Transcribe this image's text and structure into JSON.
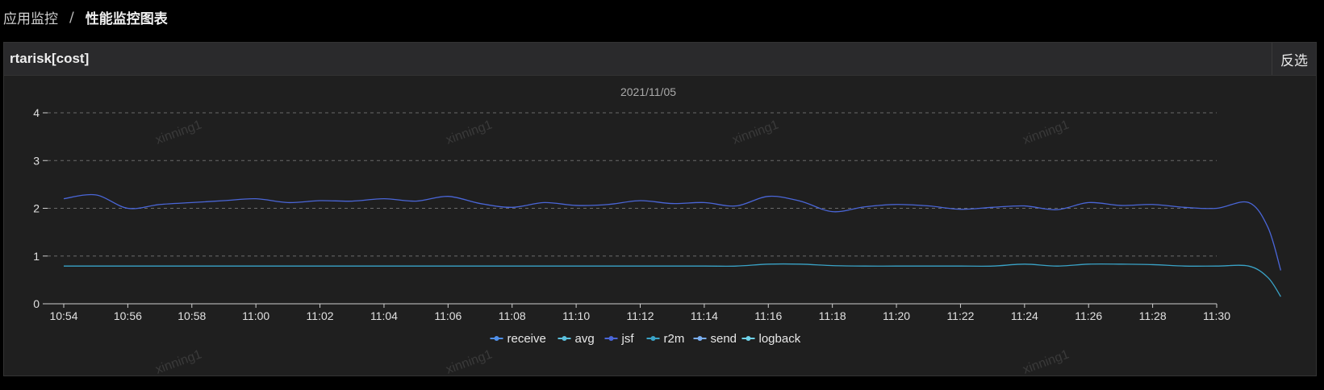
{
  "breadcrumb": {
    "parent": "应用监控",
    "separator": "/",
    "current": "性能监控图表"
  },
  "panel": {
    "title": "rtarisk[cost]",
    "invert_label": "反选"
  },
  "watermark_text": "xinning1",
  "chart_data": {
    "type": "line",
    "title": "2021/11/05",
    "xlabel": "",
    "ylabel": "",
    "ylim": [
      0,
      4
    ],
    "yticks": [
      0,
      1,
      2,
      3,
      4
    ],
    "x_labels": [
      "10:54",
      "10:56",
      "10:58",
      "11:00",
      "11:02",
      "11:04",
      "11:06",
      "11:08",
      "11:10",
      "11:12",
      "11:14",
      "11:16",
      "11:18",
      "11:20",
      "11:22",
      "11:24",
      "11:26",
      "11:28",
      "11:30"
    ],
    "legend_position": "bottom-center",
    "grid": true,
    "legend": [
      "receive",
      "avg",
      "jsf",
      "r2m",
      "send",
      "logback"
    ],
    "series_colors": [
      "#4f8fe8",
      "#5bc0de",
      "#4a66d8",
      "#3aa3c7",
      "#7aaef0",
      "#6fd3ea"
    ],
    "series": [
      {
        "name": "jsf",
        "color": "#4a66d8",
        "x": [
          0,
          0.5,
          1,
          1.5,
          2,
          2.5,
          3,
          3.5,
          4,
          4.5,
          5,
          5.5,
          6,
          6.5,
          7,
          7.5,
          8,
          8.5,
          9,
          9.5,
          10,
          10.5,
          11,
          11.5,
          12,
          12.5,
          13,
          13.5,
          14,
          14.5,
          15,
          15.5,
          16,
          16.5,
          17,
          17.5,
          18,
          18.5,
          18.8,
          19
        ],
        "values": [
          2.2,
          2.28,
          2.0,
          2.08,
          2.12,
          2.16,
          2.2,
          2.12,
          2.16,
          2.15,
          2.2,
          2.15,
          2.25,
          2.1,
          2.02,
          2.12,
          2.06,
          2.08,
          2.16,
          2.1,
          2.12,
          2.05,
          2.25,
          2.15,
          1.93,
          2.03,
          2.08,
          2.05,
          1.98,
          2.02,
          2.05,
          1.97,
          2.12,
          2.06,
          2.08,
          2.02,
          2.0,
          2.12,
          1.6,
          0.7
        ]
      },
      {
        "name": "r2m",
        "color": "#3aa3c7",
        "x": [
          0,
          1,
          2,
          3,
          4,
          5,
          6,
          7,
          8,
          9,
          10,
          10.5,
          11,
          11.5,
          12,
          12.5,
          13,
          13.5,
          14,
          14.5,
          15,
          15.5,
          16,
          16.5,
          17,
          17.5,
          18,
          18.5,
          18.8,
          19
        ],
        "values": [
          0.79,
          0.79,
          0.79,
          0.79,
          0.79,
          0.79,
          0.79,
          0.79,
          0.79,
          0.79,
          0.79,
          0.79,
          0.83,
          0.83,
          0.8,
          0.79,
          0.79,
          0.79,
          0.79,
          0.79,
          0.83,
          0.79,
          0.83,
          0.83,
          0.82,
          0.79,
          0.79,
          0.79,
          0.55,
          0.15
        ]
      }
    ]
  }
}
